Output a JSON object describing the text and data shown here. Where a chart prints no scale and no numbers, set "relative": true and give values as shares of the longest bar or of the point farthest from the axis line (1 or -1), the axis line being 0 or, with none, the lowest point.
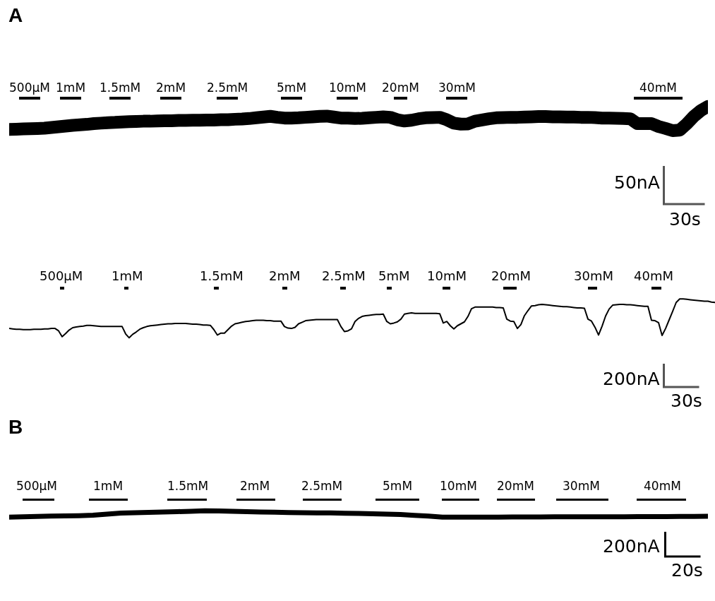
{
  "chart_data": [
    {
      "type": "line",
      "title": "A",
      "relative": true,
      "categories": [
        null,
        null,
        null,
        null,
        null,
        null,
        null,
        null,
        null,
        null,
        null,
        null,
        null,
        null,
        null,
        null,
        null,
        null,
        null,
        null,
        null,
        null,
        null,
        null,
        null,
        null,
        null,
        null,
        null,
        null,
        null,
        null,
        null,
        null,
        null,
        null,
        null,
        null,
        null,
        null,
        null,
        null,
        null,
        null,
        null,
        null,
        null,
        null,
        null,
        null,
        null,
        null,
        null,
        null,
        null,
        null,
        null,
        null,
        null,
        null,
        null,
        null,
        null,
        null,
        null,
        null,
        null,
        null,
        null,
        null,
        null,
        null,
        null,
        null,
        null,
        null,
        null,
        null,
        null,
        null,
        null,
        null,
        null,
        null,
        null,
        null,
        null,
        null,
        null,
        null,
        null,
        null,
        null,
        null,
        null,
        null,
        null,
        null,
        null,
        null
      ],
      "series": [
        {
          "color": "#000000",
          "values": [
            0.05,
            0.06,
            0.07,
            0.08,
            0.09,
            0.1,
            0.13,
            0.16,
            0.19,
            0.22,
            0.24,
            0.26,
            0.29,
            0.31,
            0.33,
            0.34,
            0.36,
            0.37,
            0.38,
            0.39,
            0.39,
            0.4,
            0.41,
            0.41,
            0.42,
            0.42,
            0.43,
            0.43,
            0.44,
            0.44,
            0.45,
            0.45,
            0.47,
            0.48,
            0.5,
            0.53,
            0.56,
            0.59,
            0.55,
            0.52,
            0.52,
            0.53,
            0.55,
            0.57,
            0.59,
            0.6,
            0.56,
            0.52,
            0.52,
            0.5,
            0.51,
            0.53,
            0.55,
            0.57,
            0.55,
            0.45,
            0.4,
            0.43,
            0.49,
            0.53,
            0.54,
            0.55,
            0.45,
            0.31,
            0.27,
            0.28,
            0.39,
            0.44,
            0.49,
            0.53,
            0.54,
            0.55,
            0.55,
            0.56,
            0.57,
            0.58,
            0.58,
            0.57,
            0.57,
            0.56,
            0.56,
            0.55,
            0.55,
            0.54,
            0.52,
            0.52,
            0.51,
            0.5,
            0.49,
            0.29,
            0.29,
            0.29,
            0.17,
            0.09,
            0.0,
            0.02,
            0.28,
            0.59,
            0.83,
            1.0
          ]
        }
      ],
      "annotations": [
        "500µM",
        "1mM",
        "1.5mM",
        "2mM",
        "2.5mM",
        "5mM",
        "10mM",
        "20mM",
        "30mM",
        "40mM",
        "50nA",
        "30s"
      ]
    },
    {
      "type": "line",
      "relative": true,
      "categories": [
        null,
        null,
        null,
        null,
        null,
        null,
        null,
        null,
        null,
        null,
        null,
        null,
        null,
        null,
        null,
        null,
        null,
        null,
        null,
        null,
        null,
        null,
        null,
        null,
        null,
        null,
        null,
        null,
        null,
        null,
        null,
        null,
        null,
        null,
        null,
        null,
        null,
        null,
        null,
        null,
        null,
        null,
        null,
        null,
        null,
        null,
        null,
        null,
        null,
        null,
        null,
        null,
        null,
        null,
        null,
        null,
        null,
        null,
        null,
        null,
        null,
        null,
        null,
        null,
        null,
        null,
        null,
        null,
        null,
        null,
        null,
        null,
        null,
        null,
        null,
        null,
        null,
        null,
        null,
        null,
        null,
        null,
        null,
        null,
        null,
        null,
        null,
        null,
        null,
        null,
        null,
        null,
        null,
        null,
        null,
        null,
        null,
        null,
        null,
        null,
        null,
        null,
        null,
        null,
        null,
        null,
        null,
        null,
        null,
        null,
        null,
        null,
        null,
        null,
        null,
        null,
        null,
        null,
        null,
        null,
        null,
        null,
        null,
        null,
        null,
        null,
        null,
        null,
        null,
        null,
        null,
        null,
        null,
        null,
        null,
        null,
        null,
        null,
        null,
        null,
        null,
        null,
        null,
        null,
        null,
        null,
        null,
        null,
        null,
        null,
        null,
        null,
        null,
        null,
        null,
        null,
        null,
        null,
        null,
        null,
        null,
        null,
        null,
        null,
        null,
        null,
        null,
        null,
        null,
        null,
        null,
        null,
        null,
        null,
        null,
        null,
        null,
        null,
        null,
        null,
        null,
        null,
        null,
        null,
        null,
        null,
        null,
        null,
        null,
        null,
        null,
        null,
        null,
        null,
        null,
        null,
        null,
        null,
        null,
        null,
        null
      ],
      "series": [
        {
          "color": "#000000",
          "values": [
            0.24,
            0.23,
            0.22,
            0.22,
            0.21,
            0.21,
            0.21,
            0.22,
            0.22,
            0.22,
            0.23,
            0.23,
            0.24,
            0.24,
            0.18,
            0.03,
            0.11,
            0.2,
            0.26,
            0.28,
            0.29,
            0.3,
            0.32,
            0.32,
            0.31,
            0.3,
            0.29,
            0.29,
            0.29,
            0.29,
            0.29,
            0.29,
            0.29,
            0.1,
            0.0,
            0.09,
            0.15,
            0.22,
            0.26,
            0.29,
            0.31,
            0.32,
            0.33,
            0.34,
            0.35,
            0.36,
            0.36,
            0.37,
            0.37,
            0.37,
            0.37,
            0.36,
            0.35,
            0.35,
            0.34,
            0.33,
            0.33,
            0.32,
            0.21,
            0.07,
            0.12,
            0.12,
            0.21,
            0.3,
            0.36,
            0.38,
            0.4,
            0.42,
            0.43,
            0.44,
            0.45,
            0.45,
            0.45,
            0.44,
            0.44,
            0.43,
            0.43,
            0.43,
            0.29,
            0.25,
            0.24,
            0.27,
            0.36,
            0.4,
            0.44,
            0.45,
            0.46,
            0.47,
            0.47,
            0.47,
            0.47,
            0.47,
            0.47,
            0.47,
            0.29,
            0.16,
            0.18,
            0.23,
            0.42,
            0.5,
            0.55,
            0.57,
            0.58,
            0.59,
            0.6,
            0.6,
            0.61,
            0.42,
            0.36,
            0.38,
            0.41,
            0.48,
            0.61,
            0.63,
            0.64,
            0.63,
            0.63,
            0.63,
            0.63,
            0.63,
            0.63,
            0.63,
            0.62,
            0.38,
            0.42,
            0.31,
            0.23,
            0.31,
            0.36,
            0.41,
            0.55,
            0.75,
            0.79,
            0.79,
            0.79,
            0.79,
            0.79,
            0.79,
            0.78,
            0.78,
            0.77,
            0.48,
            0.43,
            0.42,
            0.24,
            0.34,
            0.57,
            0.7,
            0.82,
            0.83,
            0.85,
            0.86,
            0.85,
            0.84,
            0.83,
            0.82,
            0.81,
            0.8,
            0.8,
            0.79,
            0.78,
            0.77,
            0.77,
            0.76,
            0.48,
            0.43,
            0.27,
            0.07,
            0.3,
            0.56,
            0.74,
            0.84,
            0.85,
            0.86,
            0.86,
            0.85,
            0.85,
            0.84,
            0.83,
            0.82,
            0.81,
            0.81,
            0.45,
            0.44,
            0.39,
            0.06,
            0.24,
            0.46,
            0.68,
            0.91,
            1.0,
            1.0,
            0.99,
            0.98,
            0.97,
            0.96,
            0.95,
            0.94,
            0.94,
            0.92,
            0.91
          ]
        }
      ],
      "annotations": [
        "500µM",
        "1mM",
        "1.5mM",
        "2mM",
        "2.5mM",
        "5mM",
        "10mM",
        "20mM",
        "30mM",
        "40mM",
        "200nA",
        "30s"
      ]
    },
    {
      "type": "line",
      "title": "B",
      "relative": true,
      "categories": [
        null,
        null,
        null,
        null,
        null,
        null,
        null,
        null,
        null,
        null,
        null,
        null,
        null,
        null,
        null,
        null,
        null,
        null,
        null,
        null,
        null,
        null,
        null,
        null,
        null,
        null,
        null,
        null,
        null,
        null,
        null,
        null,
        null,
        null,
        null,
        null,
        null,
        null,
        null,
        null,
        null,
        null,
        null,
        null,
        null,
        null,
        null,
        null,
        null,
        null,
        null
      ],
      "series": [
        {
          "color": "#000000",
          "values": [
            0.0,
            0.06,
            0.11,
            0.16,
            0.19,
            0.23,
            0.31,
            0.49,
            0.64,
            0.7,
            0.76,
            0.81,
            0.87,
            0.92,
            1.0,
            0.97,
            0.91,
            0.86,
            0.8,
            0.77,
            0.73,
            0.7,
            0.68,
            0.66,
            0.63,
            0.59,
            0.53,
            0.48,
            0.41,
            0.29,
            0.17,
            0.0,
            0.0,
            0.0,
            0.0,
            0.01,
            0.02,
            0.03,
            0.04,
            0.07,
            0.07,
            0.07,
            0.07,
            0.07,
            0.07,
            0.08,
            0.09,
            0.1,
            0.11,
            0.13,
            0.14
          ]
        }
      ],
      "annotations": [
        "500µM",
        "1mM",
        "1.5mM",
        "2mM",
        "2.5mM",
        "5mM",
        "10mM",
        "20mM",
        "30mM",
        "40mM",
        "200nA",
        "20s"
      ]
    }
  ]
}
